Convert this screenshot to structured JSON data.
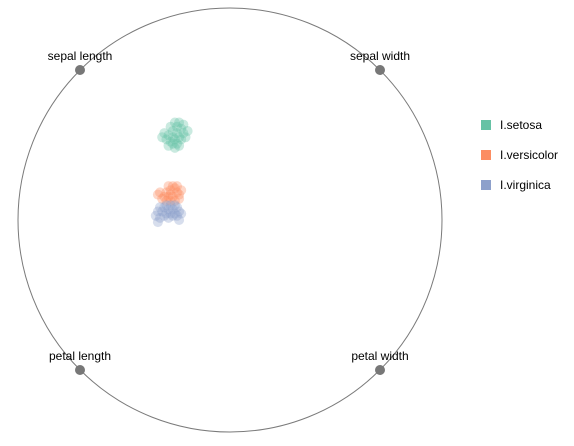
{
  "chart_data": {
    "type": "radviz",
    "title": "",
    "dimensions": [
      "sepal length",
      "sepal width",
      "petal length",
      "petal width"
    ],
    "grid": false,
    "legend_position": "right",
    "series": [
      {
        "name": "I.setosa",
        "color": "#66c2a5",
        "points": [
          [
            -0.29,
            0.4
          ],
          [
            -0.27,
            0.42
          ],
          [
            -0.25,
            0.44
          ],
          [
            -0.23,
            0.43
          ],
          [
            -0.22,
            0.41
          ],
          [
            -0.24,
            0.39
          ],
          [
            -0.26,
            0.38
          ],
          [
            -0.28,
            0.37
          ],
          [
            -0.3,
            0.38
          ],
          [
            -0.31,
            0.41
          ],
          [
            -0.27,
            0.36
          ],
          [
            -0.25,
            0.36
          ],
          [
            -0.23,
            0.38
          ],
          [
            -0.21,
            0.39
          ],
          [
            -0.2,
            0.42
          ],
          [
            -0.22,
            0.45
          ],
          [
            -0.26,
            0.46
          ],
          [
            -0.28,
            0.44
          ],
          [
            -0.32,
            0.39
          ],
          [
            -0.29,
            0.35
          ],
          [
            -0.26,
            0.34
          ],
          [
            -0.24,
            0.35
          ],
          [
            -0.27,
            0.39
          ],
          [
            -0.25,
            0.41
          ],
          [
            -0.24,
            0.46
          ]
        ]
      },
      {
        "name": "I.versicolor",
        "color": "#fc8d62",
        "points": [
          [
            -0.3,
            0.13
          ],
          [
            -0.28,
            0.14
          ],
          [
            -0.26,
            0.15
          ],
          [
            -0.25,
            0.13
          ],
          [
            -0.24,
            0.12
          ],
          [
            -0.27,
            0.11
          ],
          [
            -0.29,
            0.11
          ],
          [
            -0.31,
            0.11
          ],
          [
            -0.33,
            0.13
          ],
          [
            -0.28,
            0.09
          ],
          [
            -0.26,
            0.09
          ],
          [
            -0.24,
            0.1
          ],
          [
            -0.3,
            0.09
          ],
          [
            -0.32,
            0.1
          ],
          [
            -0.27,
            0.16
          ],
          [
            -0.29,
            0.16
          ],
          [
            -0.25,
            0.16
          ],
          [
            -0.23,
            0.14
          ],
          [
            -0.34,
            0.12
          ],
          [
            -0.28,
            0.12
          ]
        ]
      },
      {
        "name": "I.virginica",
        "color": "#8da0cb",
        "points": [
          [
            -0.33,
            0.06
          ],
          [
            -0.31,
            0.06
          ],
          [
            -0.29,
            0.05
          ],
          [
            -0.27,
            0.05
          ],
          [
            -0.25,
            0.06
          ],
          [
            -0.24,
            0.04
          ],
          [
            -0.26,
            0.03
          ],
          [
            -0.28,
            0.03
          ],
          [
            -0.3,
            0.03
          ],
          [
            -0.32,
            0.04
          ],
          [
            -0.34,
            0.04
          ],
          [
            -0.33,
            0.01
          ],
          [
            -0.31,
            0.02
          ],
          [
            -0.29,
            0.01
          ],
          [
            -0.27,
            0.02
          ],
          [
            -0.25,
            0.02
          ],
          [
            -0.23,
            0.03
          ],
          [
            -0.28,
            0.07
          ],
          [
            -0.3,
            0.07
          ],
          [
            -0.26,
            0.07
          ],
          [
            -0.35,
            0.02
          ],
          [
            -0.24,
            0.0
          ],
          [
            -0.34,
            -0.01
          ]
        ]
      }
    ]
  }
}
